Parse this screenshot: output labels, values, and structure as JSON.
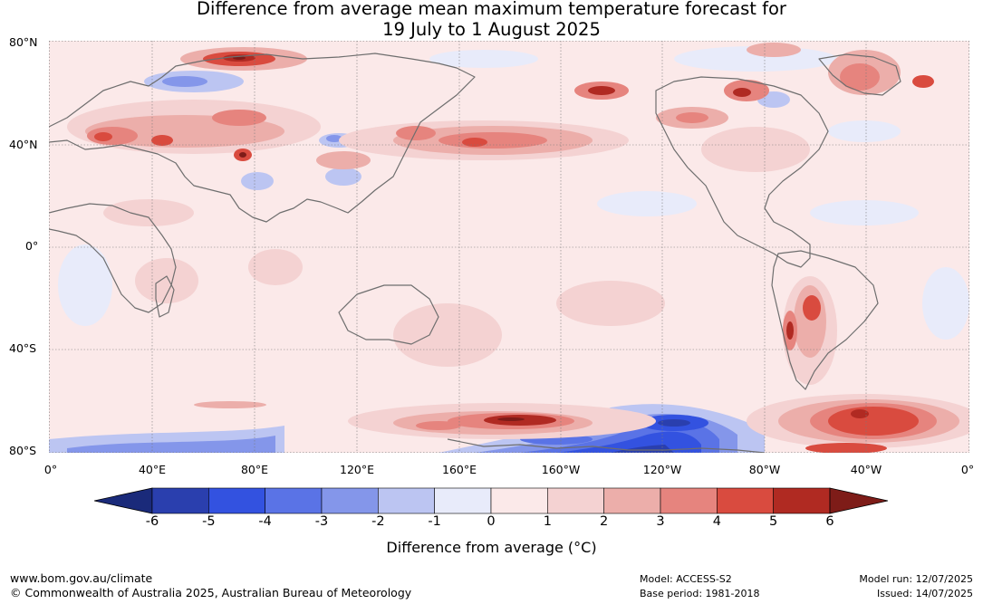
{
  "title_line1": "Difference from average mean maximum temperature forecast for",
  "title_line2": "19 July to 1 August 2025",
  "lat_labels": [
    "80°N",
    "40°N",
    "0°",
    "40°S",
    "80°S"
  ],
  "lon_labels": [
    "0°",
    "40°E",
    "80°E",
    "120°E",
    "160°E",
    "160°W",
    "120°W",
    "80°W",
    "40°W",
    "0°"
  ],
  "colorbar": {
    "tick_labels": [
      "-6",
      "-5",
      "-4",
      "-3",
      "-2",
      "-1",
      "0",
      "1",
      "2",
      "3",
      "4",
      "5",
      "6"
    ],
    "colors": [
      "#1a2a7a",
      "#2a3fae",
      "#3352e0",
      "#5a73e6",
      "#8496ea",
      "#bcc5f2",
      "#e8ebfa",
      "#fbe9e9",
      "#f4d2d2",
      "#ecaeaa",
      "#e6847e",
      "#d94b3f",
      "#b02a22",
      "#7e1c18"
    ],
    "title": "Difference from average (°C)"
  },
  "footer": {
    "url": "www.bom.gov.au/climate",
    "copyright": "© Commonwealth of Australia 2025, Australian Bureau of Meteorology",
    "model": "Model: ACCESS-S2",
    "base_period": "Base period: 1981-2018",
    "model_run": "Model run: 12/07/2025",
    "issued": "Issued: 14/07/2025"
  }
}
